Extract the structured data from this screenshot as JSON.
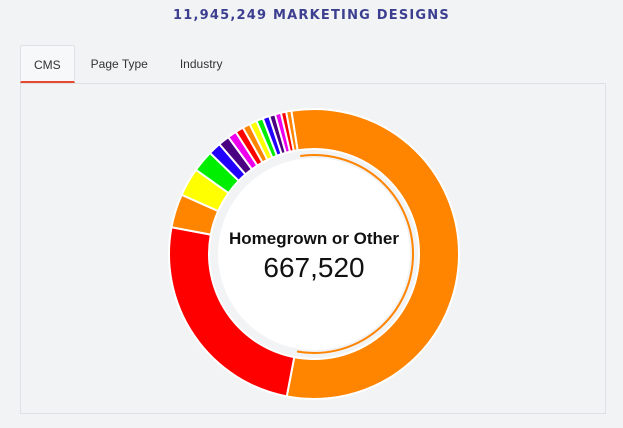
{
  "header": {
    "title": "11,945,249 MARKETING DESIGNS"
  },
  "tabs": [
    {
      "label": "CMS",
      "active": true
    },
    {
      "label": "Page Type",
      "active": false
    },
    {
      "label": "Industry",
      "active": false
    }
  ],
  "center": {
    "label": "Homegrown or Other",
    "value": "667,520"
  },
  "chart_data": {
    "type": "pie",
    "donut": true,
    "highlighted_slice": "Homegrown or Other",
    "slices": [
      {
        "value": 667520,
        "color": "#ff8400"
      },
      {
        "value": 300000,
        "color": "#ff0000"
      },
      {
        "value": 45000,
        "color": "#ff8400"
      },
      {
        "value": 38000,
        "color": "#ffff00"
      },
      {
        "value": 29000,
        "color": "#00ee00"
      },
      {
        "value": 17000,
        "color": "#2200ff"
      },
      {
        "value": 15000,
        "color": "#4b0082"
      },
      {
        "value": 12000,
        "color": "#ee00ee"
      },
      {
        "value": 11000,
        "color": "#ff0000"
      },
      {
        "value": 10000,
        "color": "#ff8400"
      },
      {
        "value": 10000,
        "color": "#ffff00"
      },
      {
        "value": 9000,
        "color": "#00ee00"
      },
      {
        "value": 9000,
        "color": "#2200ff"
      },
      {
        "value": 8000,
        "color": "#4b0082"
      },
      {
        "value": 8000,
        "color": "#ee00ee"
      },
      {
        "value": 7000,
        "color": "#ff0000"
      },
      {
        "value": 7000,
        "color": "#ff8400"
      }
    ]
  }
}
